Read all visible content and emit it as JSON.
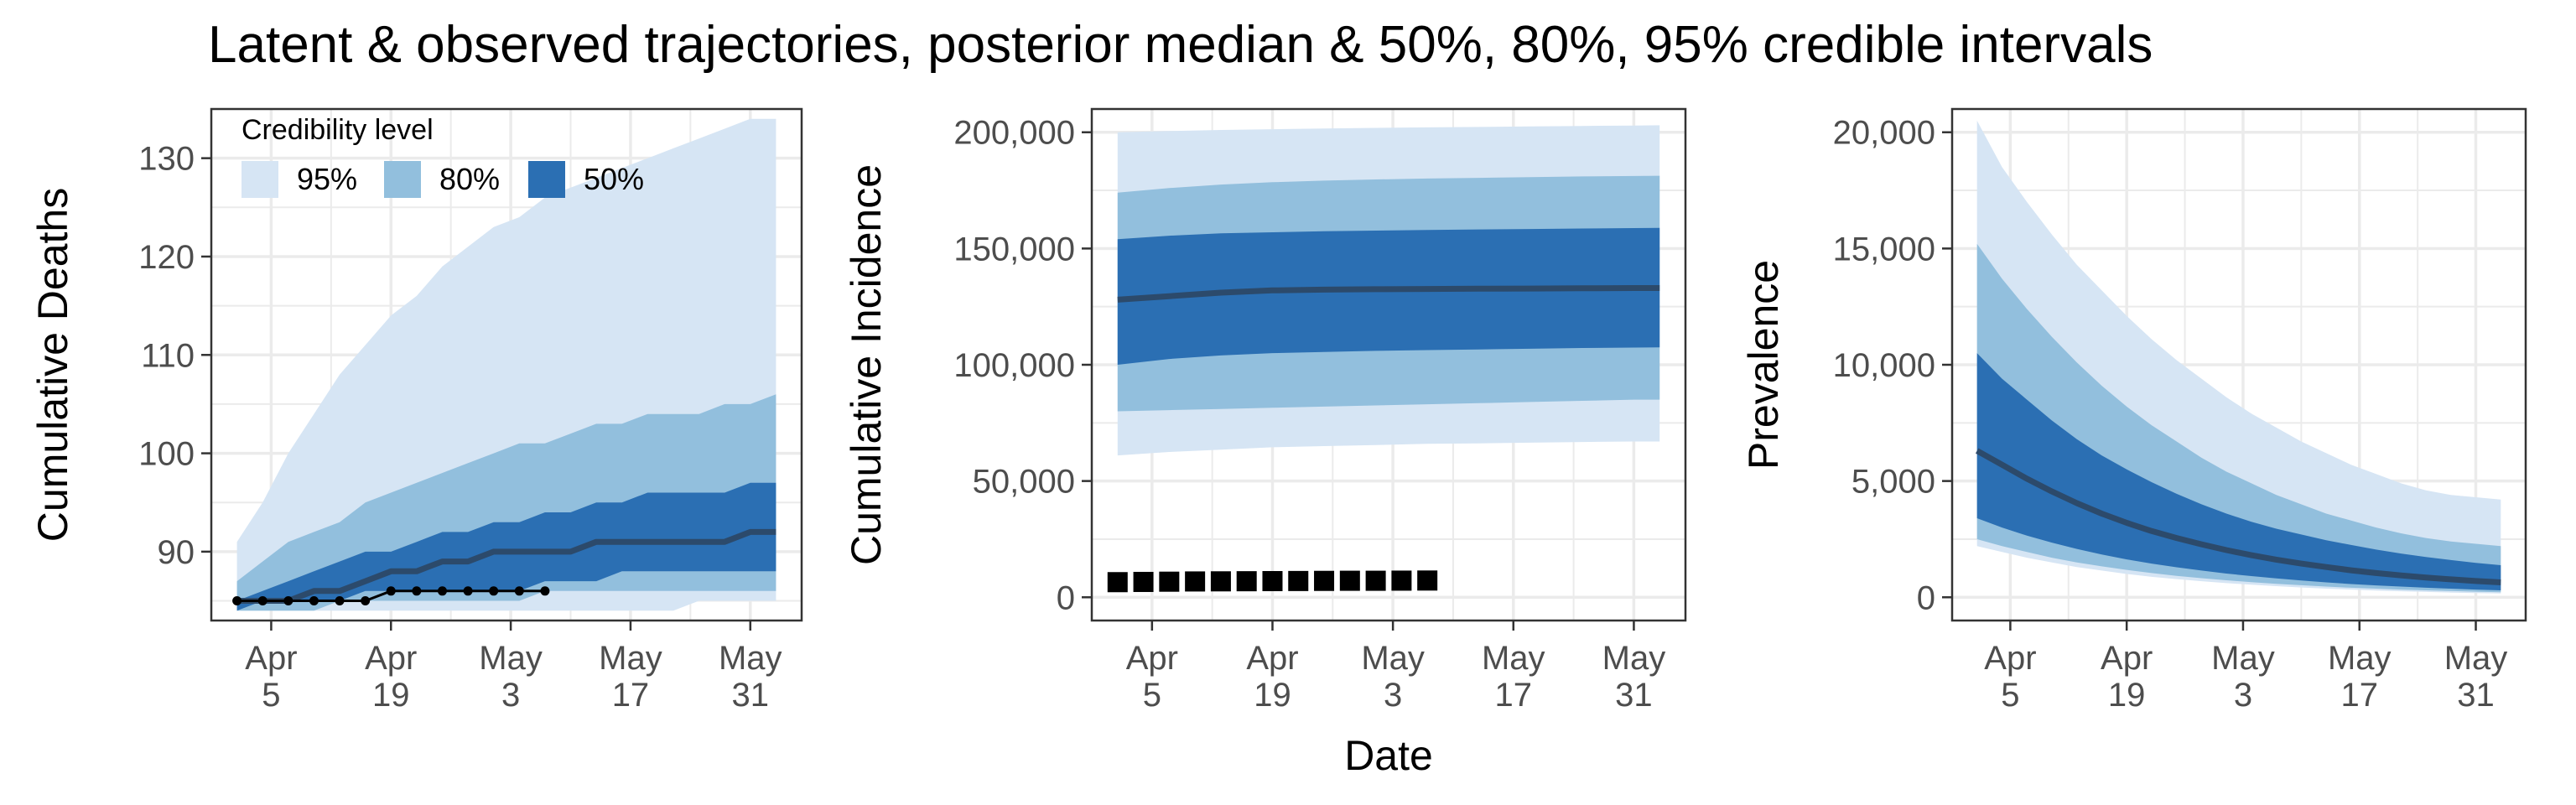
{
  "title": "Latent & observed trajectories, posterior median & 50%, 80%, 95% credible intervals",
  "shared_xlabel": "Date",
  "legend": {
    "title": "Credibility level",
    "items": [
      {
        "label": "95%",
        "color": "#d6e5f4"
      },
      {
        "label": "80%",
        "color": "#92bfdd"
      },
      {
        "label": "50%",
        "color": "#2b6fb3"
      }
    ]
  },
  "colors": {
    "band95": "#d6e5f4",
    "band80": "#92bfdd",
    "band50": "#2b6fb3",
    "median": "#2c4a6b",
    "observed": "#000000",
    "grid": "#ebebeb",
    "panel_border": "#333333"
  },
  "chart_data": [
    {
      "type": "area",
      "ylabel": "Cumulative Deaths",
      "xlim": [
        "2020-03-29",
        "2020-06-06"
      ],
      "ylim": [
        83,
        135
      ],
      "x_ticks": [
        {
          "date": "2020-04-05",
          "line1": "Apr",
          "line2": "5"
        },
        {
          "date": "2020-04-19",
          "line1": "Apr",
          "line2": "19"
        },
        {
          "date": "2020-05-03",
          "line1": "May",
          "line2": "3"
        },
        {
          "date": "2020-05-17",
          "line1": "May",
          "line2": "17"
        },
        {
          "date": "2020-05-31",
          "line1": "May",
          "line2": "31"
        }
      ],
      "y_ticks": [
        {
          "value": 90,
          "label": "90"
        },
        {
          "value": 100,
          "label": "100"
        },
        {
          "value": 110,
          "label": "110"
        },
        {
          "value": 120,
          "label": "120"
        },
        {
          "value": 130,
          "label": "130"
        }
      ],
      "x": [
        "2020-04-01",
        "2020-04-04",
        "2020-04-07",
        "2020-04-10",
        "2020-04-13",
        "2020-04-16",
        "2020-04-19",
        "2020-04-22",
        "2020-04-25",
        "2020-04-28",
        "2020-05-01",
        "2020-05-04",
        "2020-05-07",
        "2020-05-10",
        "2020-05-13",
        "2020-05-16",
        "2020-05-19",
        "2020-05-22",
        "2020-05-25",
        "2020-05-28",
        "2020-05-31",
        "2020-06-03"
      ],
      "bands": [
        {
          "level": "95%",
          "lower": [
            84,
            84,
            84,
            84,
            84,
            84,
            84,
            84,
            84,
            84,
            84,
            84,
            84,
            84,
            84,
            84,
            84,
            84,
            85,
            85,
            85,
            85
          ],
          "upper": [
            91,
            95,
            100,
            104,
            108,
            111,
            114,
            116,
            119,
            121,
            123,
            124,
            126,
            127,
            128,
            129,
            130,
            131,
            132,
            133,
            134,
            134
          ]
        },
        {
          "level": "80%",
          "lower": [
            84,
            84,
            84,
            84,
            85,
            85,
            85,
            85,
            85,
            85,
            85,
            85,
            86,
            86,
            86,
            86,
            86,
            86,
            86,
            86,
            86,
            86
          ],
          "upper": [
            87,
            89,
            91,
            92,
            93,
            95,
            96,
            97,
            98,
            99,
            100,
            101,
            101,
            102,
            103,
            103,
            104,
            104,
            104,
            105,
            105,
            106
          ]
        },
        {
          "level": "50%",
          "lower": [
            84,
            85,
            85,
            85,
            85,
            86,
            86,
            86,
            86,
            86,
            86,
            86,
            87,
            87,
            87,
            88,
            88,
            88,
            88,
            88,
            88,
            88
          ],
          "upper": [
            85,
            86,
            87,
            88,
            89,
            90,
            90,
            91,
            92,
            92,
            93,
            93,
            94,
            94,
            95,
            95,
            96,
            96,
            96,
            96,
            97,
            97
          ]
        }
      ],
      "median": [
        85,
        85,
        85,
        86,
        86,
        87,
        88,
        88,
        89,
        89,
        90,
        90,
        90,
        90,
        91,
        91,
        91,
        91,
        91,
        91,
        92,
        92
      ],
      "observed": {
        "style": "line-points",
        "x": [
          "2020-04-01",
          "2020-04-04",
          "2020-04-07",
          "2020-04-10",
          "2020-04-13",
          "2020-04-16",
          "2020-04-19",
          "2020-04-22",
          "2020-04-25",
          "2020-04-28",
          "2020-05-01",
          "2020-05-04",
          "2020-05-07"
        ],
        "y": [
          85,
          85,
          85,
          85,
          85,
          85,
          86,
          86,
          86,
          86,
          86,
          86,
          86
        ]
      }
    },
    {
      "type": "area",
      "ylabel": "Cumulative Incidence",
      "xlim": [
        "2020-03-29",
        "2020-06-06"
      ],
      "ylim": [
        -10000,
        210000
      ],
      "x_ticks": [
        {
          "date": "2020-04-05",
          "line1": "Apr",
          "line2": "5"
        },
        {
          "date": "2020-04-19",
          "line1": "Apr",
          "line2": "19"
        },
        {
          "date": "2020-05-03",
          "line1": "May",
          "line2": "3"
        },
        {
          "date": "2020-05-17",
          "line1": "May",
          "line2": "17"
        },
        {
          "date": "2020-05-31",
          "line1": "May",
          "line2": "31"
        }
      ],
      "y_ticks": [
        {
          "value": 0,
          "label": "0"
        },
        {
          "value": 50000,
          "label": "50,000"
        },
        {
          "value": 100000,
          "label": "100,000"
        },
        {
          "value": 150000,
          "label": "150,000"
        },
        {
          "value": 200000,
          "label": "200,000"
        }
      ],
      "x": [
        "2020-04-01",
        "2020-04-07",
        "2020-04-13",
        "2020-04-19",
        "2020-04-25",
        "2020-05-01",
        "2020-05-07",
        "2020-05-13",
        "2020-05-19",
        "2020-05-25",
        "2020-05-31",
        "2020-06-03"
      ],
      "bands": [
        {
          "level": "95%",
          "lower": [
            61000,
            62500,
            63500,
            64500,
            65000,
            65500,
            66000,
            66200,
            66500,
            66800,
            67000,
            67000
          ],
          "upper": [
            200000,
            200500,
            201000,
            201300,
            201600,
            201900,
            202100,
            202300,
            202500,
            202700,
            202900,
            203000
          ]
        },
        {
          "level": "80%",
          "lower": [
            80000,
            80500,
            81000,
            81500,
            82000,
            82500,
            83000,
            83500,
            84000,
            84500,
            85000,
            85000
          ],
          "upper": [
            174000,
            176000,
            177500,
            178500,
            179200,
            179700,
            180100,
            180400,
            180700,
            181000,
            181200,
            181300
          ]
        },
        {
          "level": "50%",
          "lower": [
            100000,
            102500,
            104000,
            105000,
            105500,
            106000,
            106300,
            106600,
            106900,
            107200,
            107400,
            107500
          ],
          "upper": [
            154000,
            155500,
            156500,
            157000,
            157400,
            157700,
            158000,
            158200,
            158400,
            158600,
            158800,
            158900
          ]
        }
      ],
      "median": [
        128000,
        129500,
        131000,
        132000,
        132300,
        132500,
        132600,
        132700,
        132800,
        132900,
        133000,
        133000
      ],
      "observed": {
        "style": "squares",
        "x": [
          "2020-04-01",
          "2020-04-04",
          "2020-04-07",
          "2020-04-10",
          "2020-04-13",
          "2020-04-16",
          "2020-04-19",
          "2020-04-22",
          "2020-04-25",
          "2020-04-28",
          "2020-05-01",
          "2020-05-04",
          "2020-05-07"
        ],
        "y": [
          6500,
          6600,
          6700,
          6800,
          6850,
          6900,
          6950,
          7000,
          7050,
          7100,
          7100,
          7150,
          7200
        ]
      }
    },
    {
      "type": "area",
      "ylabel": "Prevalence",
      "xlim": [
        "2020-03-29",
        "2020-06-06"
      ],
      "ylim": [
        -1000,
        21000
      ],
      "x_ticks": [
        {
          "date": "2020-04-05",
          "line1": "Apr",
          "line2": "5"
        },
        {
          "date": "2020-04-19",
          "line1": "Apr",
          "line2": "19"
        },
        {
          "date": "2020-05-03",
          "line1": "May",
          "line2": "3"
        },
        {
          "date": "2020-05-17",
          "line1": "May",
          "line2": "17"
        },
        {
          "date": "2020-05-31",
          "line1": "May",
          "line2": "31"
        }
      ],
      "y_ticks": [
        {
          "value": 0,
          "label": "0"
        },
        {
          "value": 5000,
          "label": "5,000"
        },
        {
          "value": 10000,
          "label": "10,000"
        },
        {
          "value": 15000,
          "label": "15,000"
        },
        {
          "value": 20000,
          "label": "20,000"
        }
      ],
      "x": [
        "2020-04-01",
        "2020-04-04",
        "2020-04-07",
        "2020-04-10",
        "2020-04-13",
        "2020-04-16",
        "2020-04-19",
        "2020-04-22",
        "2020-04-25",
        "2020-04-28",
        "2020-05-01",
        "2020-05-04",
        "2020-05-07",
        "2020-05-10",
        "2020-05-13",
        "2020-05-16",
        "2020-05-19",
        "2020-05-22",
        "2020-05-25",
        "2020-05-28",
        "2020-05-31",
        "2020-06-03"
      ],
      "bands": [
        {
          "level": "95%",
          "lower": [
            2200,
            1950,
            1700,
            1500,
            1300,
            1150,
            1000,
            880,
            780,
            690,
            610,
            540,
            480,
            420,
            370,
            330,
            290,
            260,
            230,
            200,
            180,
            160
          ],
          "upper": [
            20500,
            18500,
            17000,
            15600,
            14300,
            13200,
            12100,
            11100,
            10200,
            9400,
            8600,
            7900,
            7300,
            6700,
            6200,
            5700,
            5300,
            4900,
            4600,
            4400,
            4300,
            4200
          ]
        },
        {
          "level": "80%",
          "lower": [
            2500,
            2200,
            1950,
            1700,
            1500,
            1330,
            1180,
            1040,
            920,
            820,
            730,
            650,
            580,
            520,
            460,
            410,
            370,
            330,
            300,
            270,
            240,
            220
          ],
          "upper": [
            15200,
            13700,
            12400,
            11200,
            10100,
            9100,
            8200,
            7400,
            6700,
            6000,
            5400,
            4900,
            4400,
            4000,
            3600,
            3300,
            3000,
            2750,
            2550,
            2400,
            2300,
            2200
          ]
        },
        {
          "level": "50%",
          "lower": [
            3400,
            3000,
            2650,
            2350,
            2080,
            1840,
            1630,
            1450,
            1290,
            1150,
            1020,
            910,
            810,
            720,
            640,
            570,
            510,
            460,
            410,
            370,
            330,
            300
          ],
          "upper": [
            10500,
            9400,
            8500,
            7600,
            6800,
            6100,
            5500,
            4950,
            4450,
            4000,
            3600,
            3250,
            2950,
            2700,
            2450,
            2250,
            2050,
            1880,
            1730,
            1600,
            1480,
            1380
          ]
        }
      ],
      "median": [
        6300,
        5700,
        5100,
        4550,
        4050,
        3600,
        3200,
        2850,
        2550,
        2280,
        2030,
        1810,
        1620,
        1450,
        1300,
        1160,
        1040,
        940,
        850,
        770,
        700,
        640
      ]
    }
  ]
}
